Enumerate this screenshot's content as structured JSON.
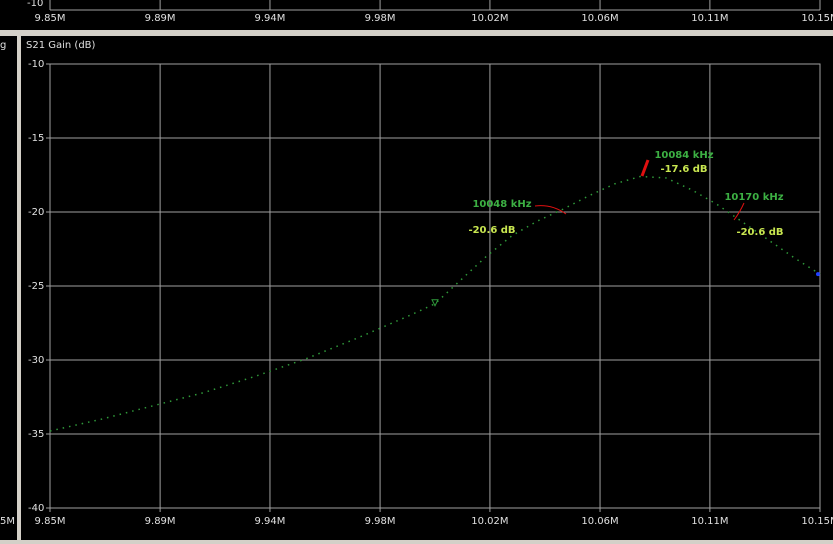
{
  "chart_data": {
    "type": "line",
    "title": "S21 Gain (dB)",
    "series": [
      {
        "name": "S21 Gain",
        "color": "#2f9a3a",
        "x": [
          9.85,
          9.87,
          9.89,
          9.91,
          9.93,
          9.95,
          9.97,
          9.99,
          10.0,
          10.01,
          10.02,
          10.03,
          10.04,
          10.05,
          10.06,
          10.07,
          10.08,
          10.09,
          10.1,
          10.11,
          10.12,
          10.13,
          10.14,
          10.15
        ],
        "values": [
          -34.8,
          -34.0,
          -33.1,
          -32.2,
          -31.1,
          -29.9,
          -28.5,
          -27.0,
          -26.2,
          -24.6,
          -23.0,
          -21.6,
          -20.6,
          -19.8,
          -18.9,
          -18.1,
          -17.6,
          -17.7,
          -18.5,
          -19.5,
          -20.7,
          -21.9,
          -23.1,
          -24.2
        ]
      }
    ],
    "markers": [
      {
        "x": 10.0,
        "y": -26.2,
        "color": "#2f9a3a"
      },
      {
        "x": 10.15,
        "y": -24.2,
        "color": "#2040ff"
      }
    ],
    "annotations": [
      {
        "frequency": "10048 kHz",
        "gain": "-20.6 dB"
      },
      {
        "frequency": "10084 kHz",
        "gain": "-17.6 dB"
      },
      {
        "frequency": "10170 kHz",
        "gain": "-20.6 dB"
      }
    ],
    "xlim": [
      9.85,
      10.15
    ],
    "xticks": [
      {
        "value": 9.85,
        "label": "9.85M"
      },
      {
        "value": 9.8929,
        "label": "9.89M"
      },
      {
        "value": 9.9357,
        "label": "9.94M"
      },
      {
        "value": 9.9786,
        "label": "9.98M"
      },
      {
        "value": 10.0214,
        "label": "10.02M"
      },
      {
        "value": 10.0643,
        "label": "10.06M"
      },
      {
        "value": 10.1071,
        "label": "10.11M"
      },
      {
        "value": 10.15,
        "label": "10.15M"
      }
    ],
    "ylim": [
      -40,
      -10
    ],
    "yticks": [
      -10,
      -15,
      -20,
      -25,
      -30,
      -35,
      -40
    ],
    "grid": true
  },
  "left_panel": {
    "title_fragment": "g",
    "tick_fragment": "5M"
  }
}
